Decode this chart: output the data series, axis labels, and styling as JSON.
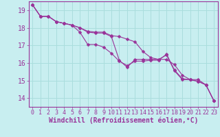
{
  "xlabel": "Windchill (Refroidissement éolien,°C)",
  "bg_color": "#c8eef0",
  "line_color": "#993399",
  "grid_color": "#aadddd",
  "spine_color": "#993399",
  "xlim": [
    -0.5,
    23.5
  ],
  "ylim": [
    13.5,
    19.5
  ],
  "yticks": [
    14,
    15,
    16,
    17,
    18,
    19
  ],
  "xticks": [
    0,
    1,
    2,
    3,
    4,
    5,
    6,
    7,
    8,
    9,
    10,
    11,
    12,
    13,
    14,
    15,
    16,
    17,
    18,
    19,
    20,
    21,
    22,
    23
  ],
  "series": [
    [
      19.3,
      18.65,
      18.65,
      18.35,
      18.25,
      18.15,
      17.75,
      17.05,
      17.05,
      16.9,
      16.55,
      16.1,
      15.85,
      16.1,
      16.1,
      16.15,
      16.15,
      16.5,
      15.6,
      15.1,
      15.05,
      15.05,
      14.75,
      13.85
    ],
    [
      19.3,
      18.65,
      18.65,
      18.35,
      18.25,
      18.15,
      18.0,
      17.8,
      17.75,
      17.75,
      17.55,
      17.5,
      17.35,
      17.2,
      16.65,
      16.3,
      16.2,
      16.2,
      15.9,
      15.3,
      15.05,
      14.95,
      14.75,
      13.85
    ],
    [
      19.3,
      18.65,
      18.65,
      18.35,
      18.25,
      18.15,
      18.0,
      17.75,
      17.7,
      17.7,
      17.5,
      16.15,
      15.75,
      16.2,
      16.2,
      16.2,
      16.2,
      16.45,
      15.55,
      15.05,
      15.05,
      14.95,
      14.75,
      13.85
    ]
  ],
  "tick_fontsize": 6,
  "xlabel_fontsize": 7,
  "marker_size": 2.5,
  "line_width": 0.8
}
